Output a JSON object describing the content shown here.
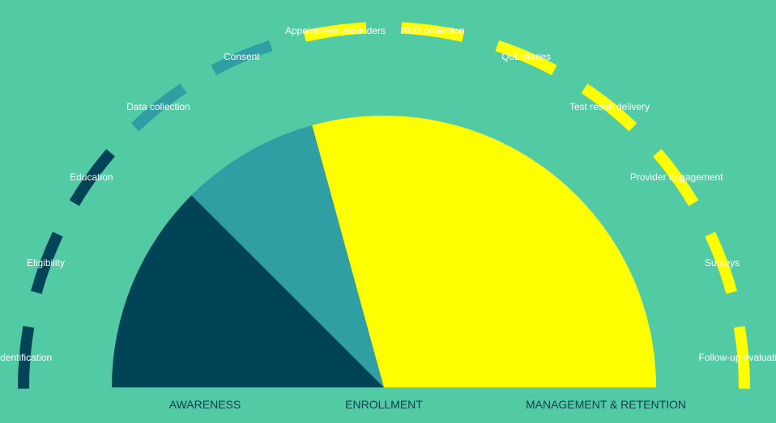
{
  "colors": {
    "background": "#52cba5",
    "awareness": "#014457",
    "enrollment": "#2f9fa3",
    "management": "#ffff00",
    "label_text": "#ffffff",
    "phase_text": "#0e3d4c"
  },
  "phases": [
    {
      "name": "awareness",
      "label": "AWARENESS",
      "share": 0.25,
      "color": "#014457"
    },
    {
      "name": "enrollment",
      "label": "ENROLLMENT",
      "share": 0.165,
      "color": "#2f9fa3"
    },
    {
      "name": "management",
      "label": "MANAGEMENT & RETENTION",
      "share": 0.585,
      "color": "#ffff00"
    }
  ],
  "steps": [
    {
      "label": "Identification",
      "phase": "awareness"
    },
    {
      "label": "Eligibility",
      "phase": "awareness"
    },
    {
      "label": "Education",
      "phase": "awareness"
    },
    {
      "label": "Data collection",
      "phase": "enrollment"
    },
    {
      "label": "Consent",
      "phase": "enrollment"
    },
    {
      "label": "Appointment reminders",
      "phase": "management"
    },
    {
      "label": "PRO collection",
      "phase": "management"
    },
    {
      "label": "QoL diaries",
      "phase": "management"
    },
    {
      "label": "Test result delivery",
      "phase": "management"
    },
    {
      "label": "Provider engagement",
      "phase": "management"
    },
    {
      "label": "Surveys",
      "phase": "management"
    },
    {
      "label": "Follow-up evaluation",
      "phase": "management"
    }
  ]
}
